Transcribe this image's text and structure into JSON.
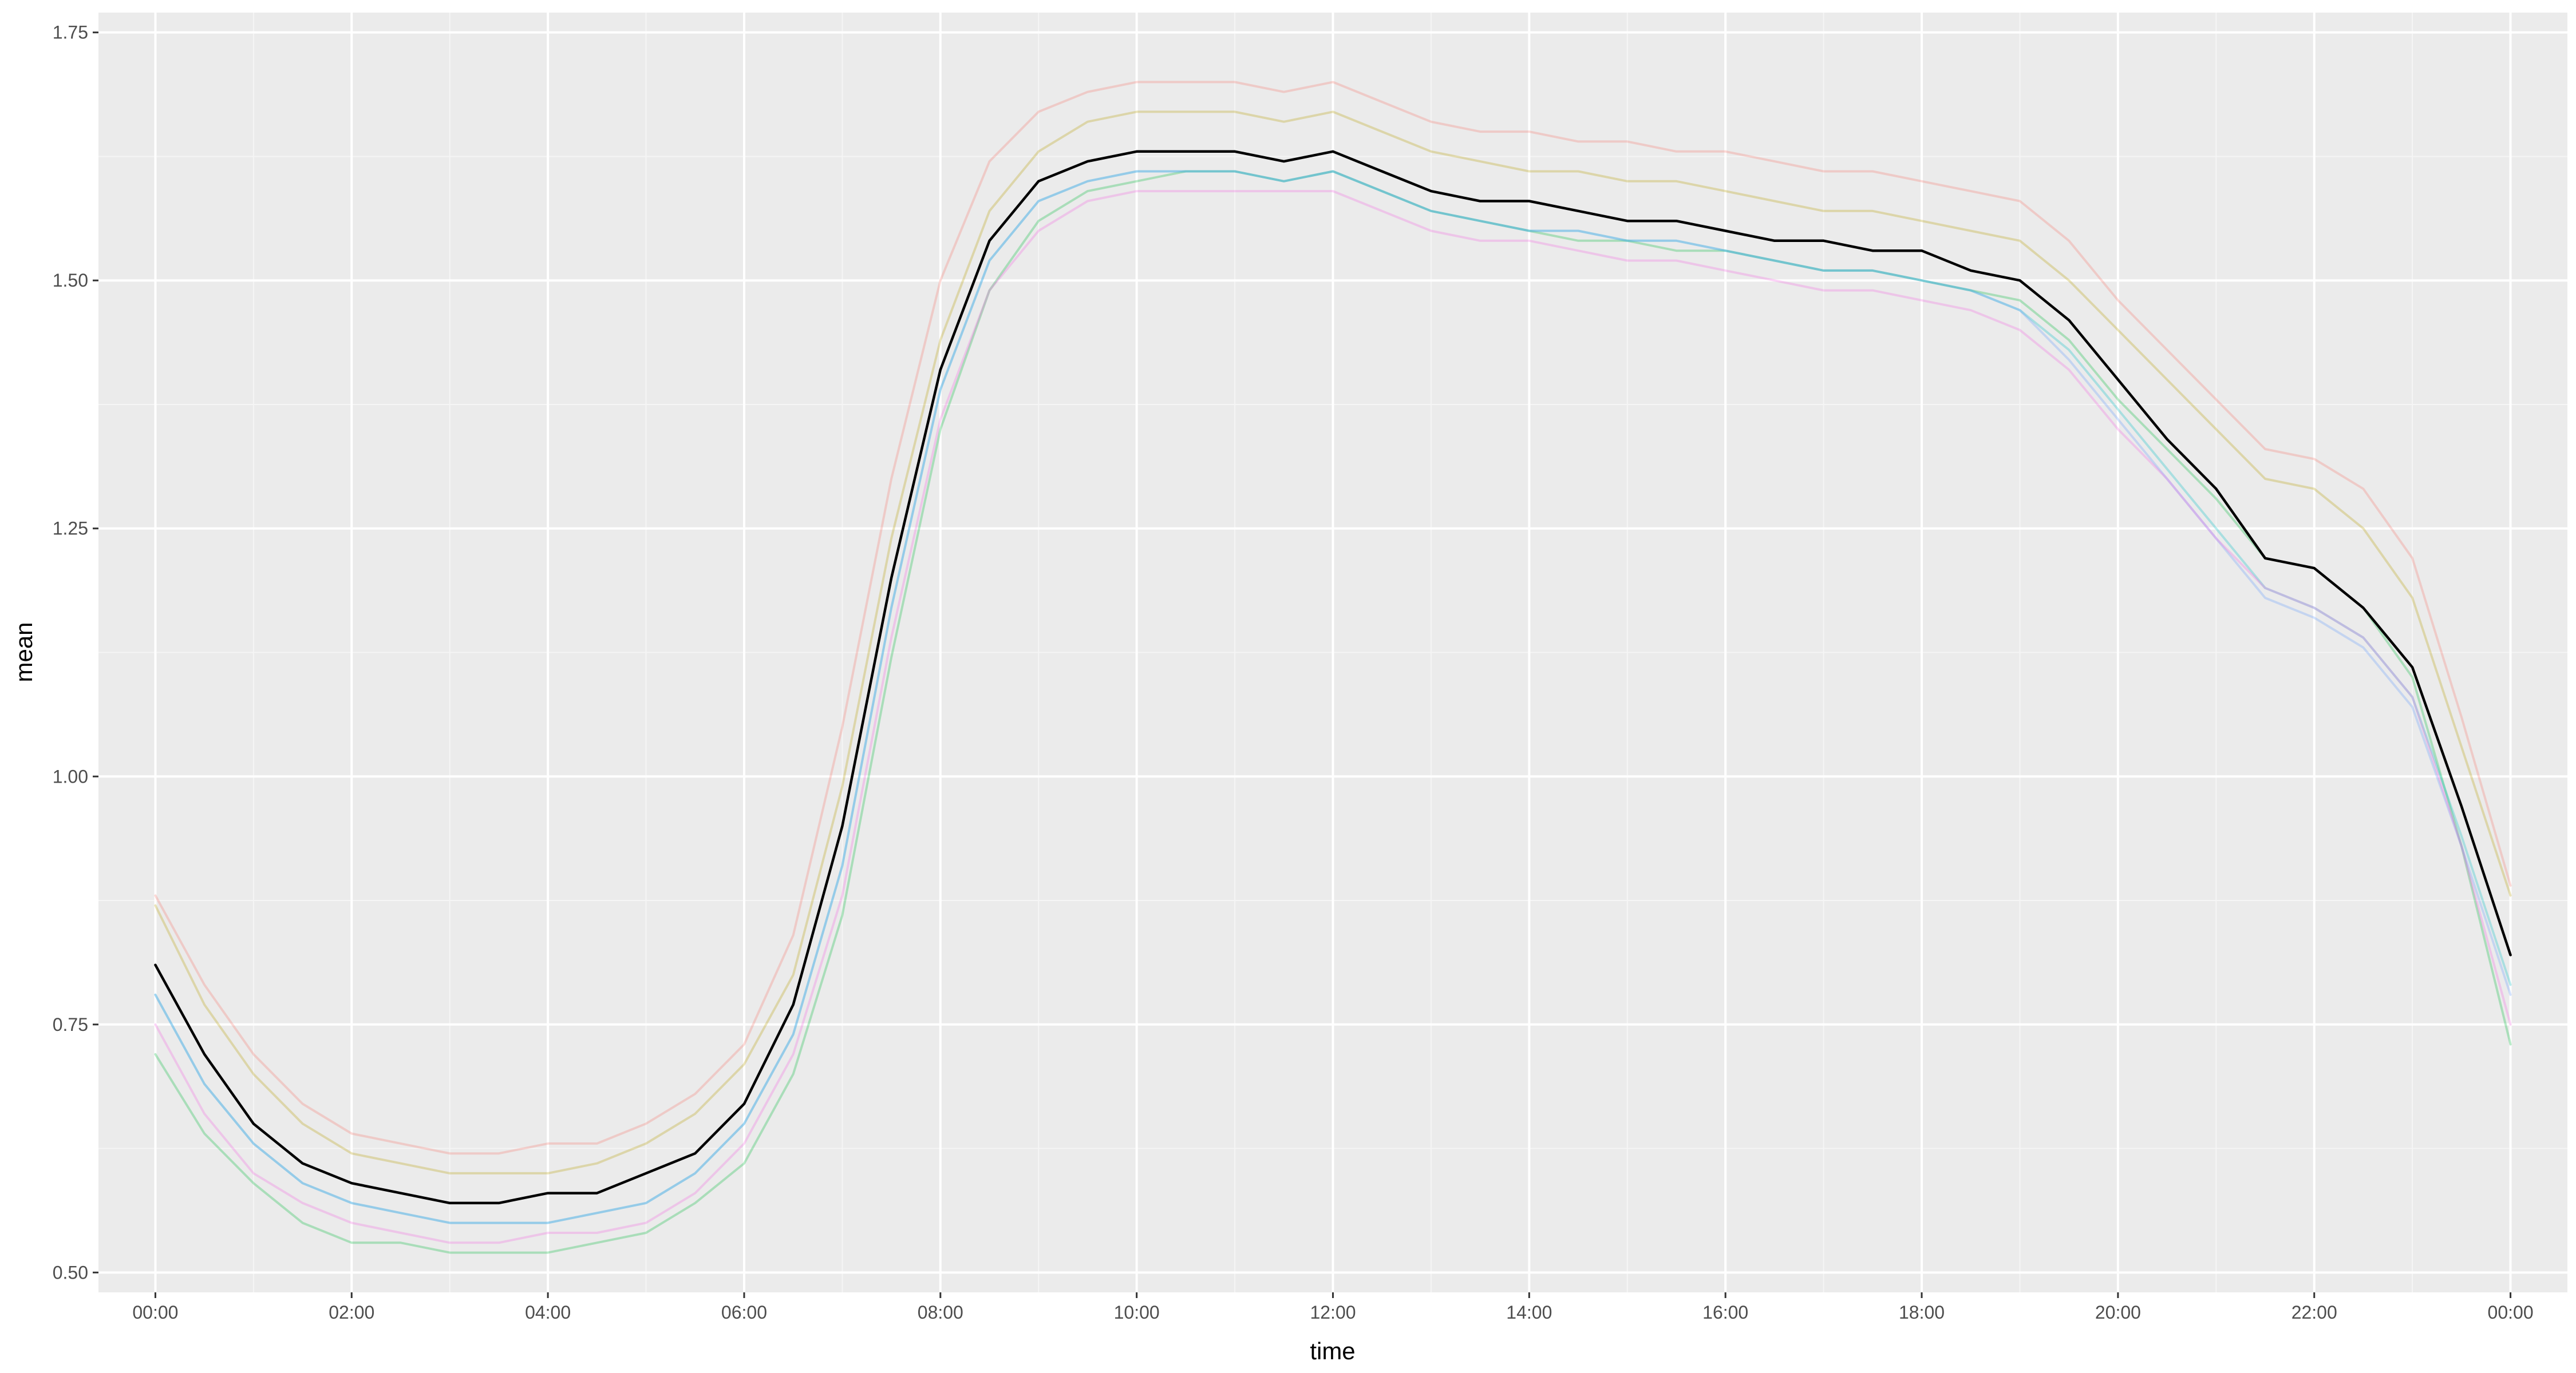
{
  "chart_data": {
    "type": "line",
    "xlabel": "time",
    "ylabel": "mean",
    "x_unit": "hours since 00:00",
    "xlim": [
      -0.58,
      24.58
    ],
    "ylim": [
      0.48,
      1.77
    ],
    "x_ticks": [
      0,
      2,
      4,
      6,
      8,
      10,
      12,
      14,
      16,
      18,
      20,
      22,
      24
    ],
    "x_tick_labels": [
      "00:00",
      "02:00",
      "04:00",
      "06:00",
      "08:00",
      "10:00",
      "12:00",
      "14:00",
      "16:00",
      "18:00",
      "20:00",
      "22:00",
      "00:00"
    ],
    "y_ticks": [
      0.5,
      0.75,
      1.0,
      1.25,
      1.5,
      1.75
    ],
    "y_tick_labels": [
      "0.50",
      "0.75",
      "1.00",
      "1.25",
      "1.50",
      "1.75"
    ],
    "grid": true,
    "legend": "none",
    "x": [
      0,
      0.5,
      1,
      1.5,
      2,
      2.5,
      3,
      3.5,
      4,
      4.5,
      5,
      5.5,
      6,
      6.5,
      7,
      7.5,
      8,
      8.5,
      9,
      9.5,
      10,
      10.5,
      11,
      11.5,
      12,
      12.5,
      13,
      13.5,
      14,
      14.5,
      15,
      15.5,
      16,
      16.5,
      17,
      17.5,
      18,
      18.5,
      19,
      19.5,
      20,
      20.5,
      21,
      21.5,
      22,
      22.5,
      23,
      23.5,
      24
    ],
    "series": [
      {
        "color": "#F8766D",
        "values": [
          0.88,
          0.79,
          0.72,
          0.67,
          0.64,
          0.63,
          0.62,
          0.62,
          0.63,
          0.63,
          0.65,
          0.68,
          0.73,
          0.84,
          1.05,
          1.3,
          1.5,
          1.62,
          1.67,
          1.69,
          1.7,
          1.7,
          1.7,
          1.69,
          1.7,
          1.68,
          1.66,
          1.65,
          1.65,
          1.64,
          1.64,
          1.63,
          1.63,
          1.62,
          1.61,
          1.61,
          1.6,
          1.59,
          1.58,
          1.54,
          1.48,
          1.43,
          1.38,
          1.33,
          1.32,
          1.29,
          1.22,
          1.06,
          0.89
        ]
      },
      {
        "color": "#B79F00",
        "values": [
          0.87,
          0.77,
          0.7,
          0.65,
          0.62,
          0.61,
          0.6,
          0.6,
          0.6,
          0.61,
          0.63,
          0.66,
          0.71,
          0.8,
          0.99,
          1.24,
          1.44,
          1.57,
          1.63,
          1.66,
          1.67,
          1.67,
          1.67,
          1.66,
          1.67,
          1.65,
          1.63,
          1.62,
          1.61,
          1.61,
          1.6,
          1.6,
          1.59,
          1.58,
          1.57,
          1.57,
          1.56,
          1.55,
          1.54,
          1.5,
          1.45,
          1.4,
          1.35,
          1.3,
          1.29,
          1.25,
          1.18,
          1.03,
          0.88
        ]
      },
      {
        "color": "#00BA38",
        "values": [
          0.72,
          0.64,
          0.59,
          0.55,
          0.53,
          0.53,
          0.52,
          0.52,
          0.52,
          0.53,
          0.54,
          0.57,
          0.61,
          0.7,
          0.86,
          1.12,
          1.35,
          1.49,
          1.56,
          1.59,
          1.6,
          1.61,
          1.61,
          1.6,
          1.61,
          1.59,
          1.57,
          1.56,
          1.55,
          1.54,
          1.54,
          1.53,
          1.53,
          1.52,
          1.51,
          1.51,
          1.5,
          1.49,
          1.48,
          1.44,
          1.38,
          1.33,
          1.28,
          1.22,
          1.21,
          1.17,
          1.1,
          0.93,
          0.73
        ]
      },
      {
        "color": "#00BFC4",
        "values": [
          0.78,
          0.69,
          0.63,
          0.59,
          0.57,
          0.56,
          0.55,
          0.55,
          0.55,
          0.56,
          0.57,
          0.6,
          0.65,
          0.74,
          0.91,
          1.17,
          1.39,
          1.52,
          1.58,
          1.6,
          1.61,
          1.61,
          1.61,
          1.6,
          1.61,
          1.59,
          1.57,
          1.56,
          1.55,
          1.55,
          1.54,
          1.54,
          1.53,
          1.52,
          1.51,
          1.51,
          1.5,
          1.49,
          1.47,
          1.43,
          1.37,
          1.31,
          1.25,
          1.19,
          1.17,
          1.14,
          1.08,
          0.94,
          0.79
        ]
      },
      {
        "color": "#619CFF",
        "values": [
          0.78,
          0.69,
          0.63,
          0.59,
          0.57,
          0.56,
          0.55,
          0.55,
          0.55,
          0.56,
          0.57,
          0.6,
          0.65,
          0.74,
          0.91,
          1.17,
          1.39,
          1.52,
          1.58,
          1.6,
          1.61,
          1.61,
          1.61,
          1.6,
          1.61,
          1.59,
          1.57,
          1.56,
          1.55,
          1.55,
          1.54,
          1.54,
          1.53,
          1.52,
          1.51,
          1.51,
          1.5,
          1.49,
          1.47,
          1.42,
          1.36,
          1.3,
          1.24,
          1.18,
          1.16,
          1.13,
          1.07,
          0.93,
          0.78
        ]
      },
      {
        "color": "#F564E3",
        "values": [
          0.75,
          0.66,
          0.6,
          0.57,
          0.55,
          0.54,
          0.53,
          0.53,
          0.54,
          0.54,
          0.55,
          0.58,
          0.63,
          0.72,
          0.88,
          1.14,
          1.36,
          1.49,
          1.55,
          1.58,
          1.59,
          1.59,
          1.59,
          1.59,
          1.59,
          1.57,
          1.55,
          1.54,
          1.54,
          1.53,
          1.52,
          1.52,
          1.51,
          1.5,
          1.49,
          1.49,
          1.48,
          1.47,
          1.45,
          1.41,
          1.35,
          1.3,
          1.24,
          1.19,
          1.17,
          1.14,
          1.08,
          0.93,
          0.75
        ]
      },
      {
        "color": "#000000",
        "values": [
          0.81,
          0.72,
          0.65,
          0.61,
          0.59,
          0.58,
          0.57,
          0.57,
          0.58,
          0.58,
          0.6,
          0.62,
          0.67,
          0.77,
          0.95,
          1.2,
          1.41,
          1.54,
          1.6,
          1.62,
          1.63,
          1.63,
          1.63,
          1.62,
          1.63,
          1.61,
          1.59,
          1.58,
          1.58,
          1.57,
          1.56,
          1.56,
          1.55,
          1.54,
          1.54,
          1.53,
          1.53,
          1.51,
          1.5,
          1.46,
          1.4,
          1.34,
          1.29,
          1.22,
          1.21,
          1.17,
          1.11,
          0.97,
          0.82
        ]
      }
    ]
  }
}
